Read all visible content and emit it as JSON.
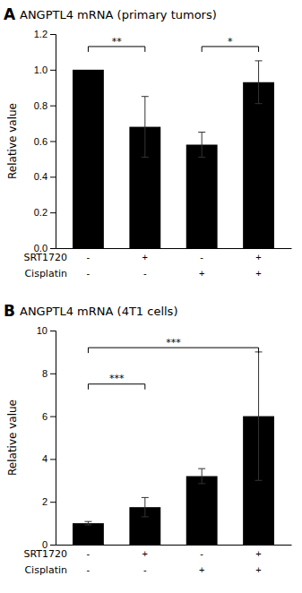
{
  "chart_data": [
    {
      "type": "bar",
      "panel_label": "A",
      "title": "ANGPTL4 mRNA (primary tumors)",
      "ylabel": "Relative value",
      "category_rows": [
        "SRT1720",
        "Cisplatin"
      ],
      "categories": [
        [
          "-",
          "-"
        ],
        [
          "+",
          "-"
        ],
        [
          "-",
          "+"
        ],
        [
          "+",
          "+"
        ]
      ],
      "values": [
        1.0,
        0.68,
        0.58,
        0.93
      ],
      "errors": [
        0.0,
        0.17,
        0.07,
        0.12
      ],
      "color": "#000000",
      "ylim": [
        0,
        1.2
      ],
      "yticks": [
        {
          "value": 0,
          "label": "0.0"
        },
        0.2,
        0.4,
        0.6,
        0.8,
        {
          "value": 1.0,
          "label": "1.0"
        },
        1.2
      ],
      "annotations": [
        {
          "text": "**",
          "x1": 0,
          "x2": 1,
          "y": 1.13
        },
        {
          "text": "*",
          "x1": 2,
          "x2": 3,
          "y": 1.13
        }
      ]
    },
    {
      "type": "bar",
      "panel_label": "B",
      "title": "ANGPTL4 mRNA (4T1 cells)",
      "ylabel": "Relative value",
      "category_rows": [
        "SRT1720",
        "Cisplatin"
      ],
      "categories": [
        [
          "-",
          "-"
        ],
        [
          "+",
          "-"
        ],
        [
          "-",
          "+"
        ],
        [
          "+",
          "+"
        ]
      ],
      "values": [
        1.0,
        1.75,
        3.2,
        6.0
      ],
      "errors": [
        0.08,
        0.45,
        0.35,
        3.0
      ],
      "color": "#000000",
      "ylim": [
        0,
        10
      ],
      "yticks": [
        0,
        2,
        4,
        6,
        8,
        10
      ],
      "annotations": [
        {
          "text": "***",
          "x1": 0,
          "x2": 1,
          "y": 7.5
        },
        {
          "text": "***",
          "x1": 0,
          "x2": 3,
          "y": 9.2
        }
      ]
    }
  ]
}
